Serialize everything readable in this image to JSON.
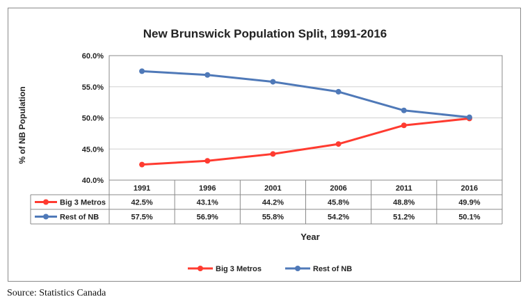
{
  "source": "Source: Statistics Canada",
  "colors": {
    "big3": "#ff3b30",
    "rest": "#4f79b8",
    "grid": "#d0d0d0",
    "axis": "#888888"
  },
  "chart_data": {
    "type": "line",
    "title": "New Brunswick Population Split, 1991-2016",
    "xlabel": "Year",
    "ylabel": "% of NB Population",
    "ylim": [
      40,
      60
    ],
    "ytick_step": 5,
    "yticks": [
      "40.0%",
      "45.0%",
      "50.0%",
      "55.0%",
      "60.0%"
    ],
    "categories": [
      "1991",
      "1996",
      "2001",
      "2006",
      "2011",
      "2016"
    ],
    "grid": true,
    "legend_position": "bottom",
    "series": [
      {
        "name": "Big 3 Metros",
        "color": "#ff3b30",
        "values": [
          42.5,
          43.1,
          44.2,
          45.8,
          48.8,
          49.9
        ],
        "labels": [
          "42.5%",
          "43.1%",
          "44.2%",
          "45.8%",
          "48.8%",
          "49.9%"
        ]
      },
      {
        "name": "Rest of NB",
        "color": "#4f79b8",
        "values": [
          57.5,
          56.9,
          55.8,
          54.2,
          51.2,
          50.1
        ],
        "labels": [
          "57.5%",
          "56.9%",
          "55.8%",
          "54.2%",
          "51.2%",
          "50.1%"
        ]
      }
    ]
  }
}
